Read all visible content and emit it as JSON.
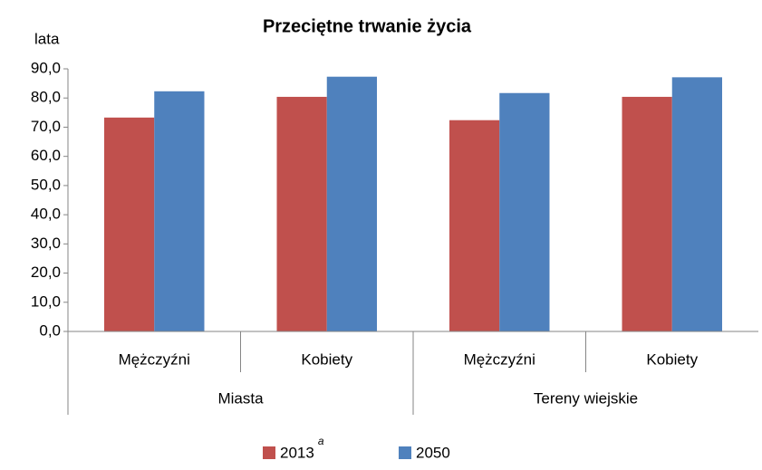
{
  "chart_data": {
    "type": "bar",
    "title": "Przeciętne trwanie życia",
    "y_label": "lata",
    "categories": [
      "Mężczyźni",
      "Kobiety",
      "Mężczyźni",
      "Kobiety"
    ],
    "groups": [
      "Miasta",
      "Tereny wiejskie"
    ],
    "series": [
      {
        "name": "2013",
        "note": "a",
        "color": "#c0504d",
        "values": [
          73.3,
          80.4,
          72.4,
          80.4
        ]
      },
      {
        "name": "2050",
        "color": "#4f81bd",
        "values": [
          82.3,
          87.3,
          81.7,
          87.1
        ]
      }
    ],
    "ylim": [
      0,
      90
    ],
    "yticks": [
      {
        "value": 0,
        "label": "0,0"
      },
      {
        "value": 10,
        "label": "10,0"
      },
      {
        "value": 20,
        "label": "20,0"
      },
      {
        "value": 30,
        "label": "30,0"
      },
      {
        "value": 40,
        "label": "40,0"
      },
      {
        "value": 50,
        "label": "50,0"
      },
      {
        "value": 60,
        "label": "60,0"
      },
      {
        "value": 70,
        "label": "70,0"
      },
      {
        "value": 80,
        "label": "80,0"
      },
      {
        "value": 90,
        "label": "90,0"
      }
    ],
    "grid": false,
    "legend": "bottom"
  }
}
